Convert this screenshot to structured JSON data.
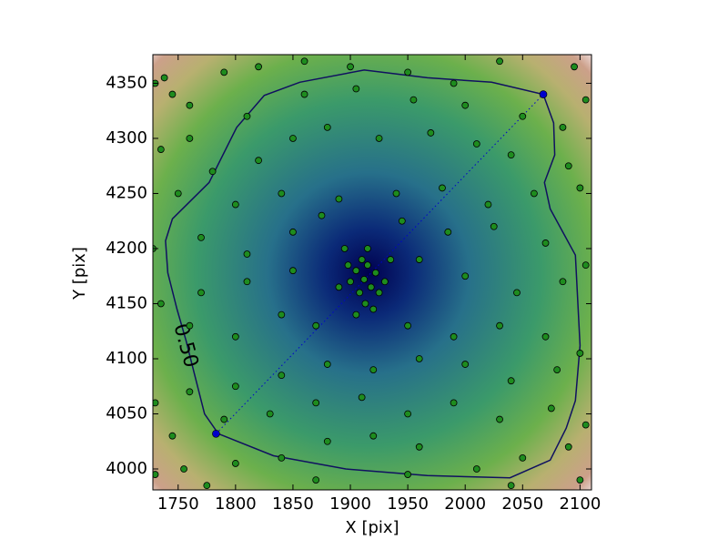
{
  "chart_data": {
    "type": "scatter",
    "xlabel": "X [pix]",
    "ylabel": "Y [pix]",
    "xlim": [
      1728,
      2110
    ],
    "ylim": [
      3981,
      4376
    ],
    "xticks": [
      1750,
      1800,
      1850,
      1900,
      1950,
      2000,
      2050,
      2100
    ],
    "yticks": [
      4000,
      4050,
      4100,
      4150,
      4200,
      4250,
      4300,
      4350
    ],
    "series": [
      {
        "color": "#1e8c1e",
        "x": [
          1905,
          1912,
          1918,
          1908,
          1915,
          1922,
          1900,
          1910,
          1925,
          1898,
          1913,
          1920,
          1930,
          1895,
          1915,
          1905,
          1935,
          1890,
          1730,
          1738,
          1745,
          1760,
          1790,
          1820,
          1860,
          1900,
          1950,
          1990,
          2030,
          2095,
          2105,
          2085,
          2050,
          2000,
          1955,
          1905,
          1860,
          1810,
          1760,
          1735,
          1780,
          1820,
          1850,
          1880,
          1925,
          1970,
          2010,
          2040,
          2090,
          2100,
          2060,
          2020,
          1980,
          1940,
          1890,
          1840,
          1800,
          1750,
          1725,
          1728,
          1770,
          1810,
          1850,
          1875,
          1945,
          1985,
          2025,
          2070,
          2105,
          2085,
          2045,
          2000,
          1960,
          1850,
          1810,
          1770,
          1735,
          1760,
          1800,
          1840,
          1870,
          1950,
          1990,
          2030,
          2070,
          2100,
          2080,
          2040,
          2000,
          1960,
          1920,
          1880,
          1840,
          1800,
          1760,
          1730,
          1745,
          1790,
          1830,
          1870,
          1910,
          1950,
          1990,
          2030,
          2075,
          2105,
          2090,
          2050,
          2010,
          1960,
          1920,
          1880,
          1840,
          1800,
          1755,
          1730,
          1775,
          1870,
          1950,
          2040,
          2100
        ],
        "y": [
          4180,
          4172,
          4165,
          4160,
          4185,
          4178,
          4170,
          4190,
          4160,
          4185,
          4150,
          4145,
          4170,
          4200,
          4200,
          4140,
          4190,
          4165,
          4350,
          4355,
          4340,
          4330,
          4360,
          4365,
          4370,
          4365,
          4360,
          4350,
          4370,
          4365,
          4335,
          4310,
          4320,
          4330,
          4335,
          4345,
          4340,
          4320,
          4300,
          4290,
          4270,
          4280,
          4300,
          4310,
          4300,
          4305,
          4295,
          4285,
          4275,
          4255,
          4250,
          4240,
          4255,
          4250,
          4245,
          4250,
          4240,
          4250,
          4225,
          4200,
          4210,
          4195,
          4215,
          4230,
          4225,
          4215,
          4220,
          4205,
          4185,
          4170,
          4160,
          4175,
          4190,
          4180,
          4170,
          4160,
          4150,
          4130,
          4120,
          4140,
          4130,
          4130,
          4120,
          4130,
          4120,
          4105,
          4090,
          4080,
          4095,
          4100,
          4090,
          4095,
          4085,
          4075,
          4070,
          4060,
          4030,
          4045,
          4050,
          4060,
          4065,
          4050,
          4060,
          4045,
          4055,
          4040,
          4020,
          4010,
          4000,
          4020,
          4030,
          4025,
          4010,
          4005,
          4000,
          3995,
          3985,
          3990,
          3995,
          3985,
          3990
        ]
      }
    ],
    "line": {
      "color": "#0000cc",
      "x": [
        1783,
        2068
      ],
      "y": [
        4032,
        4340
      ]
    },
    "contour": {
      "label": "0.50",
      "color": "#101060",
      "x": [
        1785,
        1833,
        1896,
        1967,
        2039,
        2074,
        2088,
        2096,
        2100,
        2096,
        2074,
        2069,
        2078,
        2077,
        2068,
        2023,
        1967,
        1912,
        1856,
        1825,
        1801,
        1777,
        1745,
        1739,
        1741,
        1749,
        1757,
        1764,
        1773
      ],
      "y": [
        4032,
        4012,
        4000,
        3994,
        3992,
        4008,
        4037,
        4062,
        4112,
        4194,
        4236,
        4260,
        4285,
        4314,
        4340,
        4351,
        4355,
        4362,
        4351,
        4339,
        4310,
        4260,
        4227,
        4207,
        4178,
        4145,
        4116,
        4087,
        4050
      ]
    }
  }
}
